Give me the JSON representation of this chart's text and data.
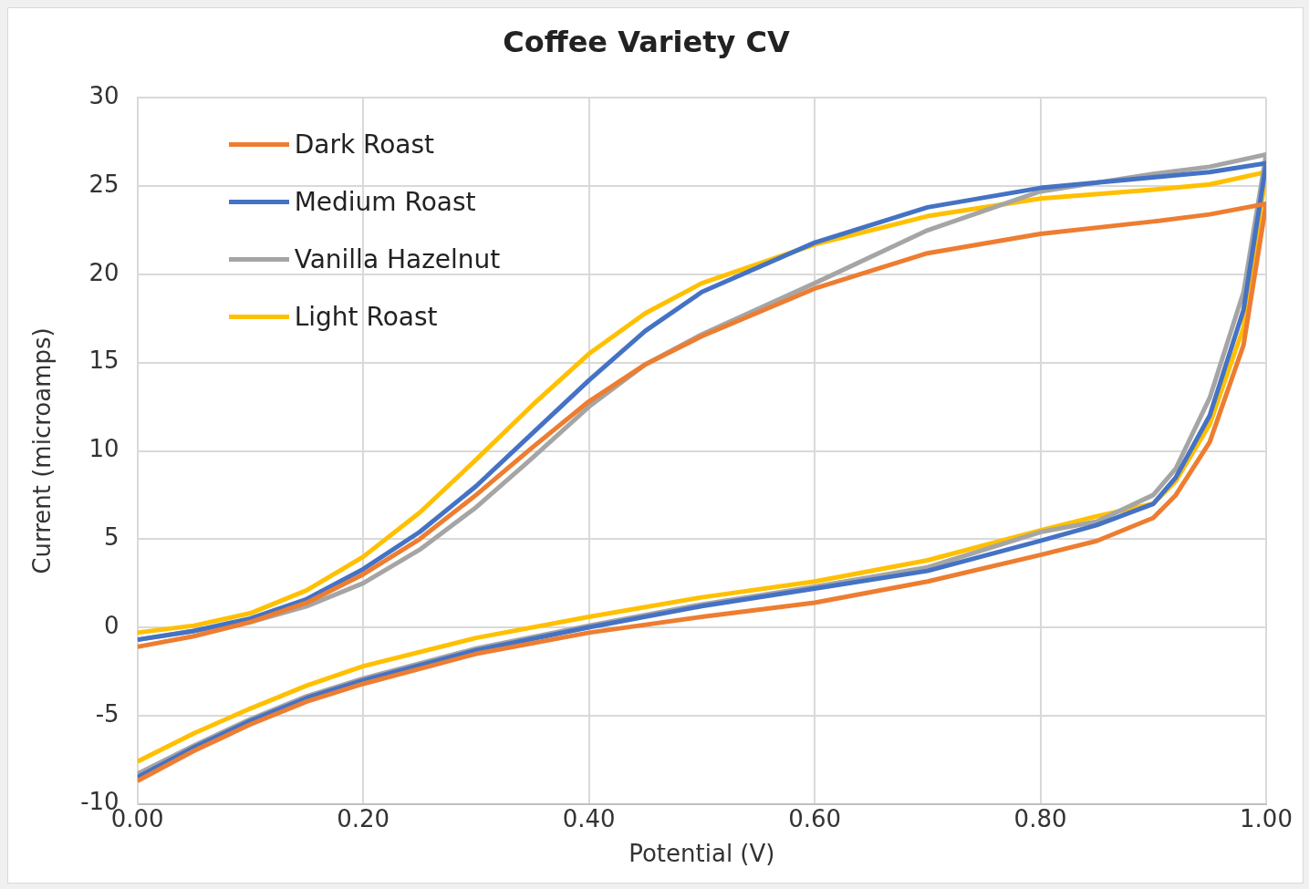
{
  "chart_data": {
    "type": "line",
    "title": "Coffee Variety CV",
    "xlabel": "Potential (V)",
    "ylabel": "Current (microamps)",
    "x": [
      0,
      0.05,
      0.1,
      0.15,
      0.2,
      0.25,
      0.3,
      0.35,
      0.4,
      0.45,
      0.5,
      0.6,
      0.7,
      0.8,
      0.9,
      0.95,
      1.0,
      0.98,
      0.95,
      0.92,
      0.9,
      0.85,
      0.8,
      0.7,
      0.6,
      0.5,
      0.4,
      0.3,
      0.2,
      0.15,
      0.1,
      0.05,
      0
    ],
    "series": [
      {
        "name": "Dark Roast",
        "color": "#ed7d31",
        "values": [
          -1.1,
          -0.5,
          0.3,
          1.4,
          3.0,
          5.0,
          7.5,
          10.2,
          12.8,
          14.9,
          16.5,
          19.2,
          21.2,
          22.3,
          23.0,
          23.4,
          24.0,
          16,
          10.5,
          7.5,
          6.2,
          4.9,
          4.1,
          2.6,
          1.4,
          0.6,
          -0.3,
          -1.5,
          -3.2,
          -4.2,
          -5.5,
          -7.0,
          -8.7
        ]
      },
      {
        "name": "Medium Roast",
        "color": "#4472c4",
        "values": [
          -0.7,
          -0.2,
          0.5,
          1.6,
          3.3,
          5.4,
          8.0,
          11.0,
          14.0,
          16.8,
          19.0,
          21.8,
          23.8,
          24.9,
          25.5,
          25.8,
          26.3,
          18,
          12,
          8.5,
          7,
          5.8,
          4.9,
          3.2,
          2.2,
          1.2,
          0,
          -1.3,
          -3.0,
          -4.0,
          -5.3,
          -6.8,
          -8.5
        ]
      },
      {
        "name": "Vanilla Hazelnut",
        "color": "#a5a5a5",
        "values": [
          -0.7,
          -0.2,
          0.3,
          1.2,
          2.5,
          4.4,
          6.8,
          9.6,
          12.5,
          14.9,
          16.6,
          19.5,
          22.5,
          24.7,
          25.7,
          26.1,
          26.8,
          19,
          13,
          9,
          7.5,
          6,
          5.4,
          3.4,
          2.3,
          1.3,
          0.1,
          -1.2,
          -2.9,
          -3.9,
          -5.2,
          -6.7,
          -8.3
        ]
      },
      {
        "name": "Light Roast",
        "color": "#ffc000",
        "values": [
          -0.3,
          0.1,
          0.8,
          2.1,
          4.0,
          6.5,
          9.5,
          12.6,
          15.5,
          17.8,
          19.5,
          21.7,
          23.3,
          24.3,
          24.8,
          25.1,
          25.8,
          17,
          11.5,
          8.3,
          7,
          6.3,
          5.5,
          3.8,
          2.6,
          1.7,
          0.6,
          -0.6,
          -2.2,
          -3.3,
          -4.6,
          -6.0,
          -7.6
        ]
      }
    ],
    "xlim": [
      0,
      1
    ],
    "xticks": [
      {
        "value": 0,
        "label": "0.00"
      },
      {
        "value": 0.2,
        "label": "0.20"
      },
      {
        "value": 0.4,
        "label": "0.40"
      },
      {
        "value": 0.6,
        "label": "0.60"
      },
      {
        "value": 0.8,
        "label": "0.80"
      },
      {
        "value": 1,
        "label": "1.00"
      }
    ],
    "ylim": [
      -10,
      30
    ],
    "yticks": [
      -10,
      -5,
      0,
      5,
      10,
      15,
      20,
      25,
      30
    ],
    "grid": true,
    "legend": "top left",
    "marker": "none",
    "line_style": "solid"
  }
}
